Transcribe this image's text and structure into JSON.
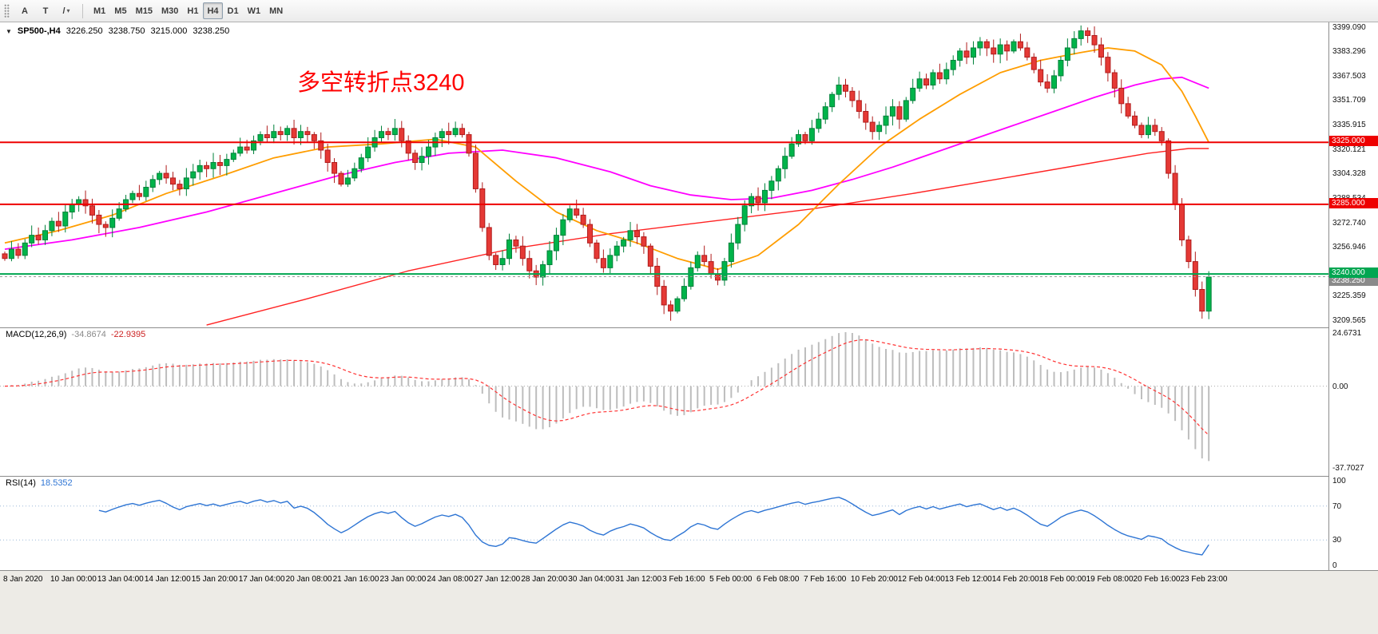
{
  "toolbar": {
    "tools": [
      {
        "label": "A"
      },
      {
        "label": "T"
      },
      {
        "label": "/"
      }
    ],
    "shapes_caret": "▾",
    "timeframes": [
      "M1",
      "M5",
      "M15",
      "M30",
      "H1",
      "H4",
      "D1",
      "W1",
      "MN"
    ],
    "active_timeframe": "H4"
  },
  "chart_header": {
    "collapse_arrow": "▼",
    "symbol": "SP500-,H4",
    "open": "3226.250",
    "high": "3238.750",
    "low": "3215.000",
    "close": "3238.250"
  },
  "annotation": {
    "text": "多空转折点3240",
    "color": "#ff0000"
  },
  "price_axis_labels": [
    "3399.090",
    "3383.296",
    "3367.503",
    "3351.709",
    "3335.915",
    "3320.121",
    "3304.328",
    "3288.534",
    "3272.740",
    "3256.946",
    "3241.153",
    "3225.359",
    "3209.565"
  ],
  "levels": [
    {
      "price": 3325.0,
      "label": "3325.000",
      "color": "#ee0000"
    },
    {
      "price": 3285.0,
      "label": "3285.000",
      "color": "#ee0000"
    },
    {
      "price": 3240.0,
      "label": "3240.000",
      "color": "#00a651"
    }
  ],
  "current_price": {
    "price": 3238.25,
    "label": "3238.250",
    "color": "#8a8a8a"
  },
  "macd_panel": {
    "name": "MACD(12,26,9)",
    "main_value": "-34.8674",
    "signal_value": "-22.9395",
    "axis_labels": [
      "24.6731",
      "0.00",
      "-37.7027"
    ],
    "axis_values": [
      24.6731,
      0,
      -37.7027
    ]
  },
  "rsi_panel": {
    "name": "RSI(14)",
    "value": "18.5352",
    "axis_labels": [
      "100",
      "70",
      "30",
      "0"
    ],
    "axis_values": [
      100,
      70,
      30,
      0
    ],
    "level_lines": [
      70,
      30
    ]
  },
  "time_axis": [
    "8 Jan 2020",
    "10 Jan 00:00",
    "13 Jan 04:00",
    "14 Jan 12:00",
    "15 Jan 20:00",
    "17 Jan 04:00",
    "20 Jan 08:00",
    "21 Jan 16:00",
    "23 Jan 00:00",
    "24 Jan 08:00",
    "27 Jan 12:00",
    "28 Jan 20:00",
    "30 Jan 04:00",
    "31 Jan 12:00",
    "3 Feb 16:00",
    "5 Feb 00:00",
    "6 Feb 08:00",
    "7 Feb 16:00",
    "10 Feb 20:00",
    "12 Feb 04:00",
    "13 Feb 12:00",
    "14 Feb 20:00",
    "18 Feb 00:00",
    "19 Feb 08:00",
    "20 Feb 16:00",
    "23 Feb 23:00"
  ],
  "chart_data": {
    "type": "candlestick",
    "symbol": "SP500-",
    "timeframe": "H4",
    "ylim": [
      3205.5,
      3402.5
    ],
    "open_first": 3253,
    "closes": [
      3250,
      3256,
      3252,
      3260,
      3265,
      3262,
      3268,
      3274,
      3271,
      3280,
      3285,
      3288,
      3284,
      3278,
      3272,
      3270,
      3276,
      3282,
      3288,
      3292,
      3290,
      3296,
      3301,
      3305,
      3302,
      3298,
      3295,
      3302,
      3306,
      3310,
      3308,
      3312,
      3310,
      3314,
      3318,
      3322,
      3320,
      3326,
      3330,
      3328,
      3332,
      3330,
      3334,
      3328,
      3332,
      3330,
      3326,
      3320,
      3312,
      3305,
      3298,
      3302,
      3308,
      3315,
      3322,
      3328,
      3332,
      3330,
      3334,
      3326,
      3318,
      3312,
      3316,
      3322,
      3328,
      3332,
      3330,
      3334,
      3330,
      3318,
      3295,
      3270,
      3252,
      3246,
      3250,
      3262,
      3258,
      3250,
      3242,
      3238,
      3246,
      3255,
      3265,
      3275,
      3282,
      3278,
      3272,
      3260,
      3250,
      3244,
      3252,
      3258,
      3262,
      3268,
      3264,
      3258,
      3245,
      3232,
      3220,
      3216,
      3224,
      3232,
      3244,
      3252,
      3248,
      3240,
      3236,
      3248,
      3260,
      3272,
      3284,
      3290,
      3286,
      3294,
      3300,
      3308,
      3316,
      3324,
      3330,
      3326,
      3334,
      3340,
      3348,
      3356,
      3362,
      3358,
      3352,
      3345,
      3338,
      3332,
      3336,
      3342,
      3348,
      3340,
      3352,
      3360,
      3366,
      3362,
      3370,
      3366,
      3372,
      3378,
      3384,
      3380,
      3386,
      3390,
      3386,
      3382,
      3388,
      3384,
      3390,
      3386,
      3380,
      3372,
      3364,
      3360,
      3368,
      3378,
      3386,
      3392,
      3397,
      3394,
      3388,
      3380,
      3370,
      3360,
      3350,
      3342,
      3336,
      3330,
      3336,
      3332,
      3326,
      3305,
      3285,
      3262,
      3248,
      3230,
      3216,
      3238
    ],
    "ma_orange": [
      [
        0,
        3260
      ],
      [
        8,
        3268
      ],
      [
        16,
        3278
      ],
      [
        24,
        3292
      ],
      [
        32,
        3303
      ],
      [
        40,
        3315
      ],
      [
        48,
        3322
      ],
      [
        56,
        3324
      ],
      [
        64,
        3327
      ],
      [
        70,
        3322
      ],
      [
        76,
        3300
      ],
      [
        82,
        3280
      ],
      [
        88,
        3268
      ],
      [
        94,
        3260
      ],
      [
        100,
        3250
      ],
      [
        106,
        3243
      ],
      [
        112,
        3252
      ],
      [
        118,
        3272
      ],
      [
        124,
        3298
      ],
      [
        130,
        3322
      ],
      [
        136,
        3340
      ],
      [
        142,
        3356
      ],
      [
        148,
        3370
      ],
      [
        154,
        3378
      ],
      [
        160,
        3383
      ],
      [
        164,
        3386
      ],
      [
        168,
        3384
      ],
      [
        172,
        3375
      ],
      [
        175,
        3358
      ],
      [
        177,
        3342
      ],
      [
        179,
        3325
      ]
    ],
    "ma_magenta": [
      [
        0,
        3256
      ],
      [
        10,
        3262
      ],
      [
        20,
        3270
      ],
      [
        30,
        3280
      ],
      [
        40,
        3292
      ],
      [
        50,
        3304
      ],
      [
        58,
        3312
      ],
      [
        66,
        3318
      ],
      [
        74,
        3320
      ],
      [
        82,
        3315
      ],
      [
        90,
        3306
      ],
      [
        96,
        3297
      ],
      [
        102,
        3291
      ],
      [
        108,
        3288
      ],
      [
        114,
        3289
      ],
      [
        120,
        3294
      ],
      [
        126,
        3301
      ],
      [
        132,
        3309
      ],
      [
        138,
        3318
      ],
      [
        144,
        3327
      ],
      [
        150,
        3336
      ],
      [
        156,
        3345
      ],
      [
        162,
        3354
      ],
      [
        168,
        3362
      ],
      [
        172,
        3366
      ],
      [
        175,
        3367
      ],
      [
        179,
        3360
      ]
    ],
    "ma_red": [
      [
        30,
        3207
      ],
      [
        45,
        3224
      ],
      [
        60,
        3242
      ],
      [
        75,
        3256
      ],
      [
        90,
        3266
      ],
      [
        105,
        3274
      ],
      [
        120,
        3282
      ],
      [
        135,
        3292
      ],
      [
        150,
        3303
      ],
      [
        162,
        3312
      ],
      [
        170,
        3318
      ],
      [
        176,
        3321
      ],
      [
        179,
        3321
      ]
    ],
    "macd": {
      "fast": 12,
      "slow": 26,
      "signal": 9,
      "main": -34.8674,
      "signal_value": -22.9395,
      "ylim": [
        27.2,
        -41.5
      ]
    },
    "rsi": {
      "period": 14,
      "value": 18.5352,
      "ylim": [
        0,
        100
      ]
    },
    "colors": {
      "up": "#00b44a",
      "up_stroke": "#00813a",
      "down": "#e53935",
      "down_stroke": "#b01c1c",
      "ma_orange": "#ff9d00",
      "ma_magenta": "#ff00ff",
      "ma_red": "#ff2222",
      "macd_hist": "#bdbdbd",
      "macd_signal": "#ff3333",
      "rsi_line": "#2e75d4",
      "rsi_level": "#9bb8d8",
      "zero_line": "#aaaaaa",
      "current_line": "#999999"
    }
  }
}
